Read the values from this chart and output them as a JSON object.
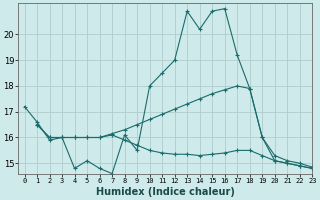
{
  "xlabel": "Humidex (Indice chaleur)",
  "background_color": "#ceeaea",
  "grid_color": "#b0cccc",
  "line_color": "#1a6b6b",
  "xlim": [
    -0.5,
    23
  ],
  "ylim": [
    14.6,
    21.2
  ],
  "yticks": [
    15,
    16,
    17,
    18,
    19,
    20
  ],
  "xticks": [
    0,
    1,
    2,
    3,
    4,
    5,
    6,
    7,
    8,
    9,
    10,
    11,
    12,
    13,
    14,
    15,
    16,
    17,
    18,
    19,
    20,
    21,
    22,
    23
  ],
  "line1_x": [
    0,
    1,
    2,
    3,
    4,
    5,
    6,
    7,
    8,
    9,
    10,
    11,
    12,
    13,
    14,
    15,
    16,
    17,
    18,
    19,
    20,
    21,
    22,
    23
  ],
  "line1_y": [
    17.2,
    16.6,
    15.9,
    16.0,
    14.8,
    15.1,
    14.8,
    14.6,
    16.1,
    15.5,
    18.0,
    18.5,
    19.0,
    20.9,
    20.2,
    20.9,
    21.0,
    19.2,
    17.9,
    16.0,
    15.1,
    15.0,
    14.9,
    14.8
  ],
  "line2_x": [
    1,
    2,
    3,
    4,
    5,
    6,
    7,
    8,
    9,
    10,
    11,
    12,
    13,
    14,
    15,
    16,
    17,
    18,
    19,
    20,
    21,
    22,
    23
  ],
  "line2_y": [
    16.5,
    16.0,
    16.0,
    16.0,
    16.0,
    16.0,
    16.15,
    16.3,
    16.5,
    16.7,
    16.9,
    17.1,
    17.3,
    17.5,
    17.7,
    17.85,
    18.0,
    17.9,
    16.0,
    15.3,
    15.1,
    15.0,
    14.85
  ],
  "line3_x": [
    1,
    2,
    3,
    4,
    5,
    6,
    7,
    8,
    9,
    10,
    11,
    12,
    13,
    14,
    15,
    16,
    17,
    18,
    19,
    20,
    21,
    22,
    23
  ],
  "line3_y": [
    16.5,
    16.0,
    16.0,
    16.0,
    16.0,
    16.0,
    16.1,
    15.9,
    15.7,
    15.5,
    15.4,
    15.35,
    15.35,
    15.3,
    15.35,
    15.4,
    15.5,
    15.5,
    15.3,
    15.1,
    15.0,
    14.9,
    14.8
  ]
}
